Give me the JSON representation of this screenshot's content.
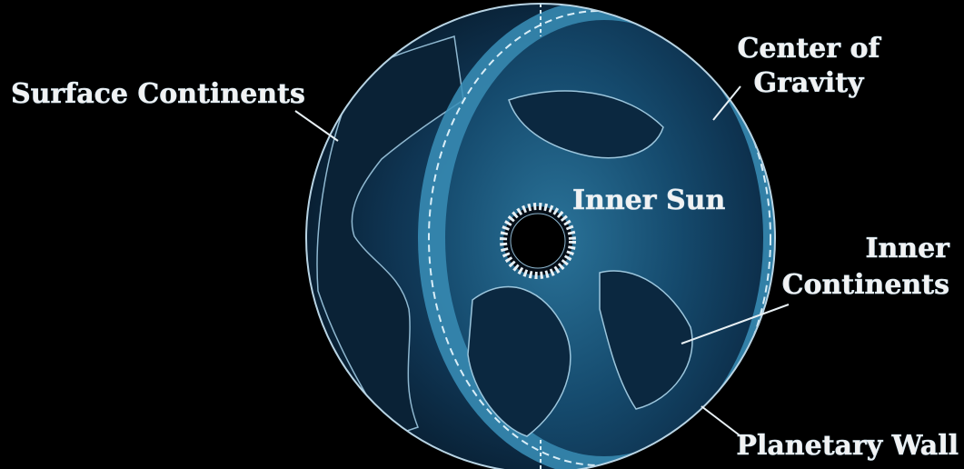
{
  "labels": [
    {
      "lines": [
        "Surface Continents"
      ]
    },
    {
      "lines": [
        "Center of",
        "Gravity"
      ]
    },
    {
      "lines": [
        "Inner Sun"
      ]
    },
    {
      "lines": [
        "Inner",
        "Continents"
      ]
    },
    {
      "lines": [
        "Planetary Wall"
      ]
    }
  ]
}
